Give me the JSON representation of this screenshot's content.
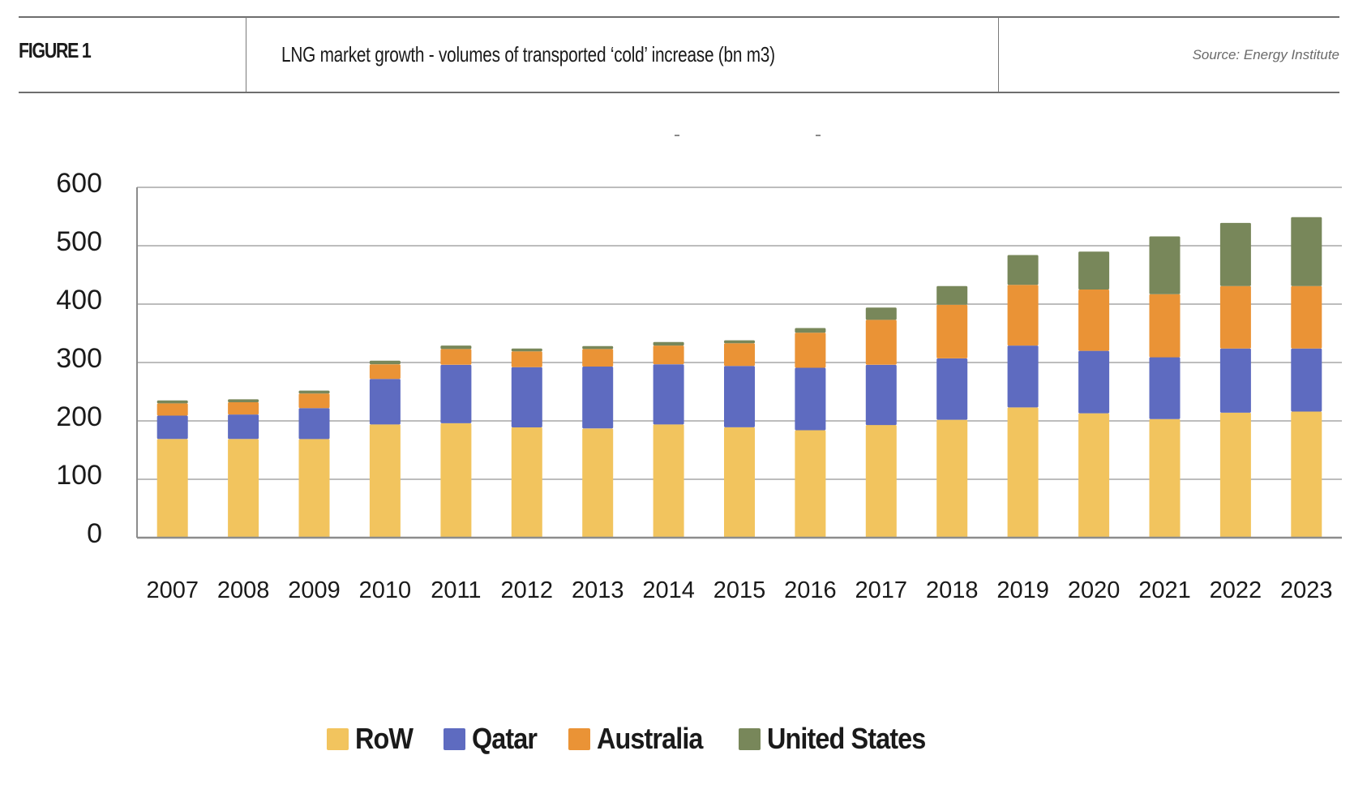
{
  "header": {
    "figure_label": "FIGURE 1",
    "title": "LNG market growth - volumes of transported ‘cold’ increase (bn m3)",
    "source": "Source: Energy Institute"
  },
  "chart_data": {
    "type": "bar",
    "stacked": true,
    "title": "LNG market growth - volumes of transported ‘cold’ increase (bn m3)",
    "xlabel": "",
    "ylabel": "",
    "units": "bn m3",
    "ylim": [
      0,
      600
    ],
    "yticks": [
      0,
      100,
      200,
      300,
      400,
      500,
      600
    ],
    "grid": true,
    "legend_position": "bottom",
    "categories": [
      "2007",
      "2008",
      "2009",
      "2010",
      "2011",
      "2012",
      "2013",
      "2014",
      "2015",
      "2016",
      "2017",
      "2018",
      "2019",
      "2020",
      "2021",
      "2022",
      "2023"
    ],
    "series": [
      {
        "name": "RoW",
        "color": "#F2C45E",
        "values": [
          169,
          169,
          169,
          194,
          196,
          189,
          187,
          194,
          189,
          184,
          193,
          202,
          223,
          213,
          203,
          214,
          216
        ]
      },
      {
        "name": "Qatar",
        "color": "#5E6BC0",
        "values": [
          40,
          42,
          53,
          78,
          100,
          103,
          106,
          103,
          105,
          107,
          103,
          105,
          106,
          107,
          106,
          110,
          108
        ]
      },
      {
        "name": "Australia",
        "color": "#EA9336",
        "values": [
          21,
          21,
          25,
          25,
          27,
          27,
          30,
          32,
          39,
          60,
          77,
          92,
          104,
          105,
          108,
          107,
          107
        ]
      },
      {
        "name": "United States",
        "color": "#78875A",
        "values": [
          5,
          5,
          5,
          6,
          6,
          5,
          5,
          6,
          5,
          8,
          21,
          32,
          51,
          65,
          99,
          108,
          118
        ]
      }
    ]
  }
}
